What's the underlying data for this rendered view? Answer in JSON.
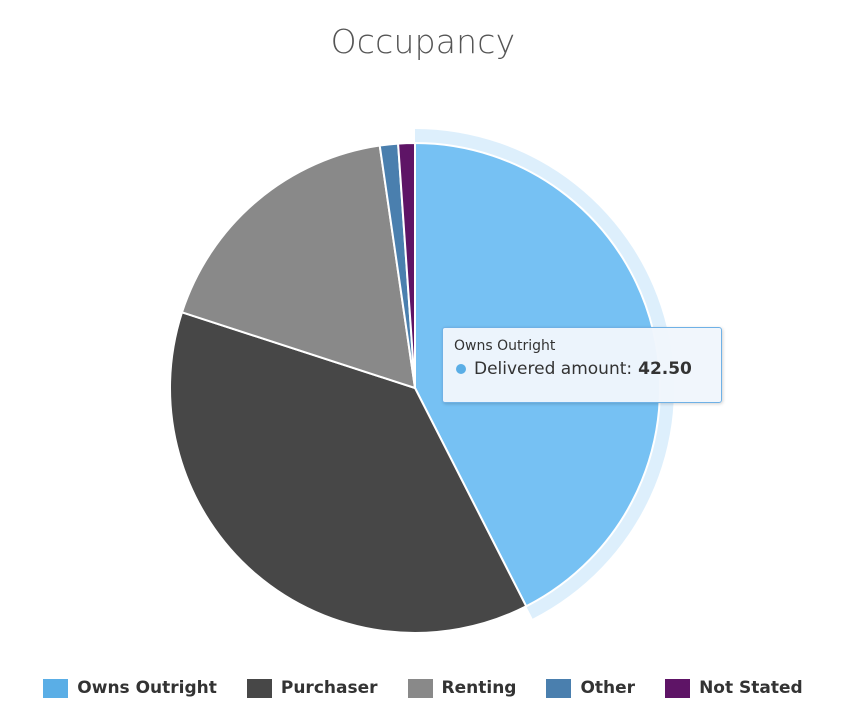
{
  "chart_data": {
    "type": "pie",
    "title": "Occupancy",
    "series_name": "Delivered amount",
    "slices": [
      {
        "label": "Owns Outright",
        "value": 42.5,
        "color": "#76c1f3",
        "legend_color": "#5aaee6"
      },
      {
        "label": "Purchaser",
        "value": 37.5,
        "color": "#474747",
        "legend_color": "#474747"
      },
      {
        "label": "Renting",
        "value": 17.7,
        "color": "#898989",
        "legend_color": "#898989"
      },
      {
        "label": "Other",
        "value": 1.2,
        "color": "#4a7fae",
        "legend_color": "#4a7fae"
      },
      {
        "label": "Not Stated",
        "value": 1.1,
        "color": "#5e1466",
        "legend_color": "#5e1466"
      }
    ],
    "highlighted_slice": "Owns Outright",
    "legend_position": "bottom"
  },
  "tooltip": {
    "header": "Owns Outright",
    "series_label": "Delivered amount:",
    "value": "42.50",
    "dot_color": "#5aaee6"
  }
}
